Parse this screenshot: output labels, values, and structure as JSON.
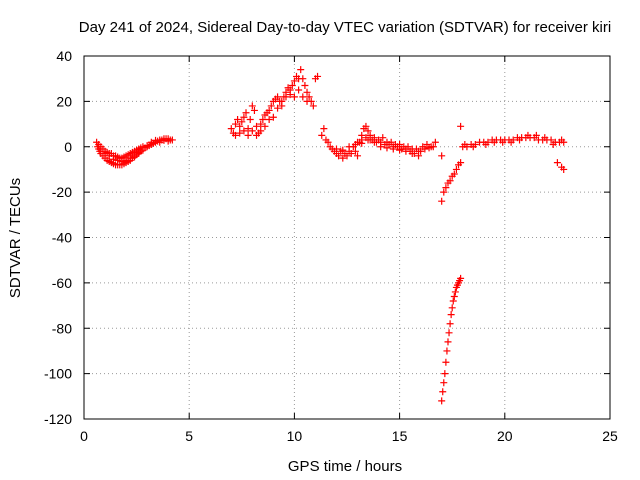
{
  "chart_data": {
    "type": "scatter",
    "title": "Day 241 of 2024, Sidereal Day-to-day VTEC variation (SDTVAR) for receiver kiri",
    "xlabel": "GPS time / hours",
    "ylabel": "SDTVAR / TECUs",
    "xlim": [
      0,
      25
    ],
    "ylim": [
      -120,
      40
    ],
    "xticks": [
      0,
      5,
      10,
      15,
      20,
      25
    ],
    "yticks": [
      -120,
      -100,
      -80,
      -60,
      -40,
      -20,
      0,
      20,
      40
    ],
    "grid": true,
    "marker": "+",
    "color": "#ff0000",
    "series": [
      {
        "points": [
          [
            0.6,
            2
          ],
          [
            0.65,
            0
          ],
          [
            0.7,
            -1
          ],
          [
            0.75,
            -2
          ],
          [
            0.8,
            -3
          ],
          [
            0.9,
            -4
          ],
          [
            1.0,
            -5
          ],
          [
            1.1,
            -6
          ],
          [
            1.2,
            -6.5
          ],
          [
            1.3,
            -7
          ],
          [
            1.4,
            -7.5
          ],
          [
            1.5,
            -8
          ],
          [
            1.6,
            -8
          ],
          [
            1.7,
            -8
          ],
          [
            1.8,
            -8
          ],
          [
            1.9,
            -7.5
          ],
          [
            2.0,
            -7
          ],
          [
            2.1,
            -6.5
          ],
          [
            2.2,
            -6
          ],
          [
            2.3,
            -5
          ],
          [
            2.4,
            -4
          ],
          [
            2.5,
            -3.5
          ],
          [
            2.6,
            -3
          ],
          [
            2.7,
            -2
          ],
          [
            2.8,
            -1.5
          ],
          [
            2.9,
            -0.5
          ],
          [
            3.0,
            0
          ],
          [
            3.1,
            0.5
          ],
          [
            3.2,
            1
          ],
          [
            3.3,
            1.5
          ],
          [
            3.4,
            2
          ],
          [
            3.5,
            2.5
          ],
          [
            3.6,
            3
          ],
          [
            3.7,
            3
          ],
          [
            3.8,
            3.5
          ],
          [
            3.9,
            3.5
          ],
          [
            4.0,
            3.5
          ],
          [
            4.1,
            3
          ],
          [
            4.2,
            3
          ],
          [
            0.7,
            1
          ],
          [
            0.8,
            0
          ],
          [
            0.9,
            -1
          ],
          [
            1.0,
            -2
          ],
          [
            1.1,
            -2.5
          ],
          [
            1.2,
            -3
          ],
          [
            1.3,
            -3
          ],
          [
            1.4,
            -4
          ],
          [
            1.5,
            -4
          ],
          [
            1.6,
            -4.5
          ],
          [
            1.7,
            -5
          ],
          [
            1.8,
            -5
          ],
          [
            1.9,
            -4.5
          ],
          [
            2.0,
            -4
          ],
          [
            2.1,
            -3.5
          ],
          [
            2.2,
            -3
          ],
          [
            2.3,
            -2.5
          ],
          [
            2.4,
            -2
          ],
          [
            2.5,
            -1.5
          ],
          [
            2.6,
            -1
          ],
          [
            2.7,
            -0.5
          ],
          [
            1.0,
            -3
          ],
          [
            1.2,
            -4
          ],
          [
            1.4,
            -5.5
          ],
          [
            1.6,
            -6
          ],
          [
            1.8,
            -6.5
          ],
          [
            2.0,
            -6
          ],
          [
            2.2,
            -5
          ],
          [
            2.4,
            -4.5
          ],
          [
            2.6,
            -2.5
          ],
          [
            2.8,
            0
          ],
          [
            3.0,
            0.5
          ],
          [
            3.2,
            2
          ],
          [
            3.4,
            2.8
          ],
          [
            3.6,
            2
          ],
          [
            3.8,
            2.8
          ],
          [
            4.0,
            2.5
          ],
          [
            7.0,
            8
          ],
          [
            7.1,
            6
          ],
          [
            7.2,
            10
          ],
          [
            7.3,
            12
          ],
          [
            7.4,
            9
          ],
          [
            7.5,
            11
          ],
          [
            7.6,
            13
          ],
          [
            7.7,
            15
          ],
          [
            7.8,
            8
          ],
          [
            7.9,
            12
          ],
          [
            8.0,
            18
          ],
          [
            8.1,
            16
          ],
          [
            8.2,
            9
          ],
          [
            8.3,
            6
          ],
          [
            8.4,
            10
          ],
          [
            8.5,
            12
          ],
          [
            8.6,
            14
          ],
          [
            8.7,
            15
          ],
          [
            8.8,
            16
          ],
          [
            8.9,
            18
          ],
          [
            9.0,
            20
          ],
          [
            9.1,
            21
          ],
          [
            9.2,
            22
          ],
          [
            9.3,
            20
          ],
          [
            9.4,
            18
          ],
          [
            9.5,
            22
          ],
          [
            9.6,
            24
          ],
          [
            9.7,
            26
          ],
          [
            9.8,
            23
          ],
          [
            9.9,
            27
          ],
          [
            10.0,
            29
          ],
          [
            10.1,
            31
          ],
          [
            10.2,
            30
          ],
          [
            10.3,
            34
          ],
          [
            10.4,
            30
          ],
          [
            10.5,
            27
          ],
          [
            10.6,
            24
          ],
          [
            10.7,
            22
          ],
          [
            10.8,
            20
          ],
          [
            10.9,
            18
          ],
          [
            7.2,
            5
          ],
          [
            7.4,
            6
          ],
          [
            7.6,
            7
          ],
          [
            7.8,
            5
          ],
          [
            8.0,
            7
          ],
          [
            8.2,
            5
          ],
          [
            8.4,
            7
          ],
          [
            8.6,
            9
          ],
          [
            8.8,
            12
          ],
          [
            9.0,
            13
          ],
          [
            9.2,
            17
          ],
          [
            9.4,
            20
          ],
          [
            9.6,
            22
          ],
          [
            9.8,
            25
          ],
          [
            10.0,
            22
          ],
          [
            10.2,
            25
          ],
          [
            10.4,
            22
          ],
          [
            10.6,
            20
          ],
          [
            11.0,
            30
          ],
          [
            11.1,
            31
          ],
          [
            11.3,
            5
          ],
          [
            11.5,
            3
          ],
          [
            11.7,
            0
          ],
          [
            11.9,
            -2
          ],
          [
            12.0,
            -3
          ],
          [
            12.1,
            -4
          ],
          [
            12.3,
            -5
          ],
          [
            12.5,
            -4
          ],
          [
            12.7,
            -3
          ],
          [
            12.9,
            -2
          ],
          [
            13.0,
            -4
          ],
          [
            13.1,
            2
          ],
          [
            13.2,
            5
          ],
          [
            13.3,
            8
          ],
          [
            13.4,
            9
          ],
          [
            13.5,
            7
          ],
          [
            13.6,
            5
          ],
          [
            13.7,
            3
          ],
          [
            13.9,
            2
          ],
          [
            14.1,
            2
          ],
          [
            14.3,
            1
          ],
          [
            14.5,
            1
          ],
          [
            14.7,
            0
          ],
          [
            14.9,
            0
          ],
          [
            15.1,
            -1
          ],
          [
            15.3,
            -1
          ],
          [
            15.5,
            -2
          ],
          [
            15.7,
            -3
          ],
          [
            15.9,
            -2
          ],
          [
            16.1,
            0
          ],
          [
            16.3,
            1
          ],
          [
            16.5,
            0
          ],
          [
            16.7,
            2
          ],
          [
            11.4,
            8
          ],
          [
            11.6,
            2
          ],
          [
            11.8,
            -1
          ],
          [
            12.2,
            -2
          ],
          [
            12.4,
            -3
          ],
          [
            12.6,
            -2
          ],
          [
            12.8,
            0
          ],
          [
            13.0,
            2
          ],
          [
            13.2,
            3
          ],
          [
            13.4,
            4
          ],
          [
            13.6,
            3
          ],
          [
            13.8,
            4
          ],
          [
            14.0,
            3
          ],
          [
            14.2,
            4
          ],
          [
            14.4,
            2
          ],
          [
            14.6,
            2
          ],
          [
            14.8,
            1
          ],
          [
            15.0,
            1
          ],
          [
            15.2,
            0
          ],
          [
            15.4,
            0
          ],
          [
            15.6,
            -1
          ],
          [
            15.8,
            -1
          ],
          [
            16.0,
            -2
          ],
          [
            16.2,
            -1
          ],
          [
            16.4,
            -0.5
          ],
          [
            16.6,
            0
          ],
          [
            12.0,
            -1
          ],
          [
            12.3,
            -1.5
          ],
          [
            12.6,
            0
          ],
          [
            12.9,
            1
          ],
          [
            13.2,
            1.5
          ],
          [
            13.5,
            3
          ],
          [
            13.8,
            2
          ],
          [
            14.1,
            0
          ],
          [
            14.4,
            -0.5
          ],
          [
            14.7,
            -1
          ],
          [
            15.0,
            -1.5
          ],
          [
            15.3,
            -2
          ],
          [
            15.6,
            -3
          ],
          [
            15.9,
            -4
          ],
          [
            17.0,
            -4
          ],
          [
            17.0,
            -24
          ],
          [
            17.1,
            -20
          ],
          [
            17.2,
            -18
          ],
          [
            17.3,
            -16
          ],
          [
            17.4,
            -15
          ],
          [
            17.5,
            -13
          ],
          [
            17.6,
            -12
          ],
          [
            17.7,
            -10
          ],
          [
            17.8,
            -8
          ],
          [
            17.9,
            -7
          ],
          [
            17.9,
            9
          ],
          [
            17.0,
            -112
          ],
          [
            17.05,
            -108
          ],
          [
            17.1,
            -104
          ],
          [
            17.15,
            -100
          ],
          [
            17.2,
            -95
          ],
          [
            17.25,
            -90
          ],
          [
            17.3,
            -86
          ],
          [
            17.35,
            -82
          ],
          [
            17.4,
            -78
          ],
          [
            17.45,
            -74
          ],
          [
            17.5,
            -71
          ],
          [
            17.55,
            -68
          ],
          [
            17.6,
            -66
          ],
          [
            17.65,
            -64
          ],
          [
            17.7,
            -62
          ],
          [
            17.75,
            -61
          ],
          [
            17.8,
            -60
          ],
          [
            17.85,
            -59
          ],
          [
            17.9,
            -58
          ],
          [
            18.0,
            0
          ],
          [
            18.2,
            0
          ],
          [
            18.4,
            1
          ],
          [
            18.6,
            1
          ],
          [
            18.8,
            2
          ],
          [
            19.0,
            2
          ],
          [
            19.2,
            2
          ],
          [
            19.4,
            3
          ],
          [
            19.6,
            3
          ],
          [
            19.8,
            3
          ],
          [
            20.0,
            3
          ],
          [
            20.2,
            3
          ],
          [
            20.4,
            3
          ],
          [
            20.6,
            4
          ],
          [
            20.8,
            4
          ],
          [
            21.0,
            4
          ],
          [
            21.2,
            4
          ],
          [
            21.4,
            4
          ],
          [
            21.6,
            3
          ],
          [
            21.8,
            3
          ],
          [
            22.0,
            3
          ],
          [
            22.2,
            3
          ],
          [
            22.4,
            2
          ],
          [
            22.6,
            2
          ],
          [
            22.8,
            2
          ],
          [
            18.1,
            1
          ],
          [
            18.5,
            0
          ],
          [
            19.1,
            1
          ],
          [
            19.5,
            2
          ],
          [
            19.9,
            2
          ],
          [
            20.3,
            2
          ],
          [
            20.7,
            3
          ],
          [
            21.1,
            5
          ],
          [
            21.5,
            5
          ],
          [
            21.9,
            4
          ],
          [
            22.3,
            1
          ],
          [
            22.7,
            3
          ],
          [
            22.5,
            -7
          ],
          [
            22.7,
            -9
          ],
          [
            22.8,
            -10
          ]
        ]
      }
    ]
  }
}
